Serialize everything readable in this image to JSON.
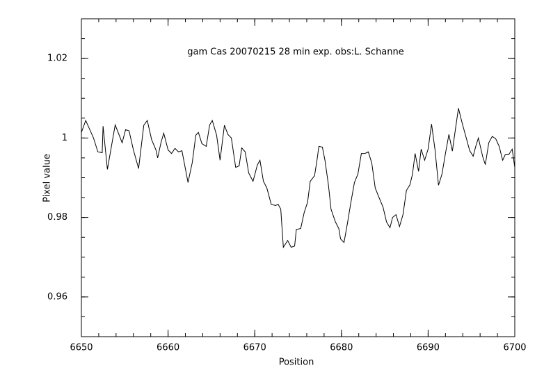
{
  "chart_data": {
    "type": "line",
    "title": "gam Cas 20070215 28 min exp. obs:L. Schanne",
    "x_label": "Position",
    "y_label": "Pixel value",
    "xlim": [
      6650,
      6700
    ],
    "ylim": [
      0.95,
      1.03
    ],
    "xticks": [
      6650,
      6660,
      6670,
      6680,
      6690,
      6700
    ],
    "yticks": [
      0.96,
      0.98,
      1,
      1.02
    ],
    "color": "#000000",
    "x": [
      6650,
      6650.5,
      6651.4,
      6651.9,
      6652.4,
      6652.5,
      6653.0,
      6653.9,
      6654.7,
      6655.1,
      6655.5,
      6656,
      6656.6,
      6657.2,
      6657.6,
      6658.1,
      6658.6,
      6658.8,
      6659.2,
      6659.5,
      6660,
      6660.4,
      6660.8,
      6661.2,
      6661.6,
      6662.3,
      6662.8,
      6663.2,
      6663.5,
      6663.9,
      6664.4,
      6664.8,
      6665.1,
      6665.6,
      6666,
      6666.5,
      6666.9,
      6667.3,
      6667.8,
      6668.2,
      6668.5,
      6668.9,
      6669.3,
      6669.8,
      6670.3,
      6670.6,
      6671,
      6671.4,
      6671.9,
      6672.4,
      6672.7,
      6673,
      6673.3,
      6673.8,
      6674.2,
      6674.6,
      6674.8,
      6675.3,
      6675.7,
      6676.1,
      6676.4,
      6676.9,
      6677.2,
      6677.4,
      6677.8,
      6678.1,
      6678.5,
      6678.8,
      6679.3,
      6679.7,
      6679.9,
      6680.3,
      6680.7,
      6681.1,
      6681.5,
      6681.9,
      6682.3,
      6682.7,
      6683.1,
      6683.5,
      6683.9,
      6684.4,
      6684.8,
      6685.2,
      6685.6,
      6685.9,
      6686.3,
      6686.7,
      6687.1,
      6687.5,
      6687.9,
      6688.2,
      6688.5,
      6688.9,
      6689.2,
      6689.6,
      6690,
      6690.4,
      6690.8,
      6691.2,
      6691.6,
      6692,
      6692.4,
      6692.8,
      6693.1,
      6693.5,
      6693.9,
      6694.4,
      6694.8,
      6695.2,
      6695.5,
      6695.8,
      6696.3,
      6696.6,
      6697,
      6697.4,
      6697.8,
      6698.2,
      6698.6,
      6698.9,
      6699.3,
      6699.7,
      6700
    ],
    "values": [
      1.0014,
      1.0044,
      1.0,
      0.9965,
      0.9963,
      1.003,
      0.9921,
      1.0033,
      0.9988,
      1.0021,
      1.0018,
      0.997,
      0.9923,
      1.0032,
      1.0044,
      0.9996,
      0.997,
      0.995,
      0.999,
      1.0012,
      0.997,
      0.9961,
      0.9974,
      0.9965,
      0.9968,
      0.9888,
      0.9939,
      1.0007,
      1.0014,
      0.9986,
      0.9979,
      1.0033,
      1.0044,
      1.0007,
      0.9944,
      1.0032,
      1.0009,
      1.0,
      0.9926,
      0.993,
      0.9975,
      0.9965,
      0.9912,
      0.9891,
      0.9932,
      0.9944,
      0.9891,
      0.9874,
      0.9833,
      0.983,
      0.9833,
      0.9821,
      0.9725,
      0.9742,
      0.9725,
      0.9728,
      0.977,
      0.9772,
      0.9812,
      0.9839,
      0.9891,
      0.9905,
      0.9947,
      0.9979,
      0.9977,
      0.9944,
      0.9882,
      0.9821,
      0.9789,
      0.9772,
      0.9746,
      0.9737,
      0.9786,
      0.9839,
      0.9888,
      0.9909,
      0.9961,
      0.9961,
      0.9965,
      0.9937,
      0.9874,
      0.9847,
      0.9826,
      0.9789,
      0.9774,
      0.98,
      0.9807,
      0.9777,
      0.9807,
      0.9868,
      0.9882,
      0.9909,
      0.9961,
      0.9916,
      0.9972,
      0.9944,
      0.9972,
      1.0035,
      0.997,
      0.9881,
      0.9909,
      0.9961,
      1.0009,
      0.9967,
      1.0014,
      1.0075,
      1.004,
      1.0,
      0.9968,
      0.9954,
      0.9979,
      1.0,
      0.9953,
      0.9933,
      0.9988,
      1.0004,
      0.9998,
      0.9979,
      0.9944,
      0.9958,
      0.9958,
      0.9972,
      0.9926
    ]
  }
}
